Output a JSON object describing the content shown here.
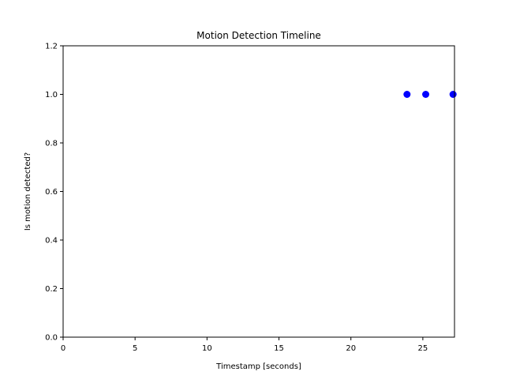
{
  "chart_data": {
    "type": "scatter",
    "title": "Motion Detection Timeline",
    "xlabel": "Timestamp [seconds]",
    "ylabel": "Is motion detected?",
    "xlim": [
      0,
      27.2
    ],
    "ylim": [
      0,
      1.2
    ],
    "x_ticks": [
      0,
      5,
      10,
      15,
      20,
      25
    ],
    "y_ticks": [
      0.0,
      0.2,
      0.4,
      0.6,
      0.8,
      1.0,
      1.2
    ],
    "x_tick_labels": [
      "0",
      "5",
      "10",
      "15",
      "20",
      "25"
    ],
    "y_tick_labels": [
      "0.0",
      "0.2",
      "0.4",
      "0.6",
      "0.8",
      "1.0",
      "1.2"
    ],
    "grid": false,
    "series": [
      {
        "color": "#0000ff",
        "x": [
          23.9,
          25.2,
          27.1
        ],
        "y": [
          1,
          1,
          1
        ]
      }
    ]
  }
}
